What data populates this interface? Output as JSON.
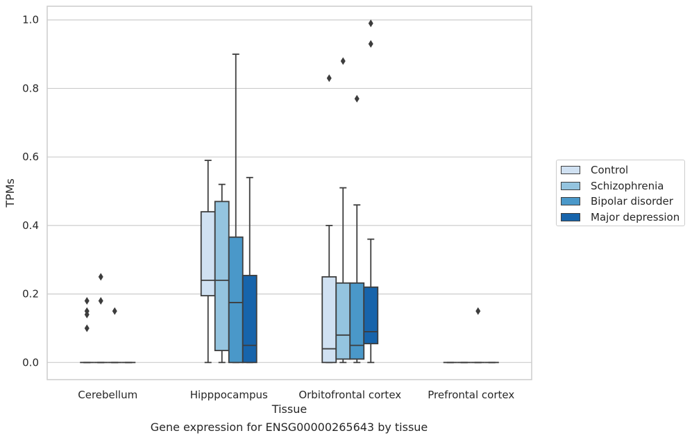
{
  "chart_data": {
    "type": "boxplot",
    "xlabel": "Tissue",
    "ylabel": "TPMs",
    "caption": "Gene expression for ENSG00000265643 by tissue",
    "ylim": [
      -0.05,
      1.04
    ],
    "yticks": [
      0.0,
      0.2,
      0.4,
      0.6,
      0.8,
      1.0
    ],
    "ytick_labels": [
      "0.0",
      "0.2",
      "0.4",
      "0.6",
      "0.8",
      "1.0"
    ],
    "categories": [
      "Cerebellum",
      "Hipppocampus",
      "Orbitofrontal cortex",
      "Prefrontal cortex"
    ],
    "grid": true,
    "legend_position": "right",
    "series": [
      {
        "name": "Control",
        "color": "#d0e1f2",
        "boxes": [
          {
            "category": "Cerebellum",
            "q1": 0,
            "median": 0,
            "q3": 0,
            "whislo": 0,
            "whishi": 0,
            "fliers": [
              0.15,
              0.1,
              0.14,
              0.18
            ]
          },
          {
            "category": "Hipppocampus",
            "q1": 0.195,
            "median": 0.24,
            "q3": 0.44,
            "whislo": 0,
            "whishi": 0.59,
            "fliers": []
          },
          {
            "category": "Orbitofrontal cortex",
            "q1": 0,
            "median": 0.04,
            "q3": 0.25,
            "whislo": 0,
            "whishi": 0.4,
            "fliers": [
              0.83
            ]
          },
          {
            "category": "Prefrontal cortex",
            "q1": 0,
            "median": 0,
            "q3": 0,
            "whislo": 0,
            "whishi": 0,
            "fliers": []
          }
        ]
      },
      {
        "name": "Schizophrenia",
        "color": "#94c4df",
        "boxes": [
          {
            "category": "Cerebellum",
            "q1": 0,
            "median": 0,
            "q3": 0,
            "whislo": 0,
            "whishi": 0,
            "fliers": [
              0.18,
              0.25
            ]
          },
          {
            "category": "Hipppocampus",
            "q1": 0.035,
            "median": 0.24,
            "q3": 0.47,
            "whislo": 0,
            "whishi": 0.52,
            "fliers": []
          },
          {
            "category": "Orbitofrontal cortex",
            "q1": 0.01,
            "median": 0.08,
            "q3": 0.232,
            "whislo": 0,
            "whishi": 0.51,
            "fliers": [
              0.88
            ]
          },
          {
            "category": "Prefrontal cortex",
            "q1": 0,
            "median": 0,
            "q3": 0,
            "whislo": 0,
            "whishi": 0,
            "fliers": []
          }
        ]
      },
      {
        "name": "Bipolar disorder",
        "color": "#4a98c9",
        "boxes": [
          {
            "category": "Cerebellum",
            "q1": 0,
            "median": 0,
            "q3": 0,
            "whislo": 0,
            "whishi": 0,
            "fliers": [
              0.15
            ]
          },
          {
            "category": "Hipppocampus",
            "q1": 0,
            "median": 0.175,
            "q3": 0.366,
            "whislo": 0,
            "whishi": 0.9,
            "fliers": []
          },
          {
            "category": "Orbitofrontal cortex",
            "q1": 0.01,
            "median": 0.05,
            "q3": 0.232,
            "whislo": 0,
            "whishi": 0.46,
            "fliers": [
              0.77
            ]
          },
          {
            "category": "Prefrontal cortex",
            "q1": 0,
            "median": 0,
            "q3": 0,
            "whislo": 0,
            "whishi": 0,
            "fliers": [
              0.15
            ]
          }
        ]
      },
      {
        "name": "Major depression",
        "color": "#1764ab",
        "boxes": [
          {
            "category": "Cerebellum",
            "q1": 0,
            "median": 0,
            "q3": 0,
            "whislo": 0,
            "whishi": 0,
            "fliers": []
          },
          {
            "category": "Hipppocampus",
            "q1": 0,
            "median": 0.05,
            "q3": 0.254,
            "whislo": 0,
            "whishi": 0.54,
            "fliers": []
          },
          {
            "category": "Orbitofrontal cortex",
            "q1": 0.055,
            "median": 0.09,
            "q3": 0.22,
            "whislo": 0,
            "whishi": 0.36,
            "fliers": [
              0.93,
              0.99
            ]
          },
          {
            "category": "Prefrontal cortex",
            "q1": 0,
            "median": 0,
            "q3": 0,
            "whislo": 0,
            "whishi": 0,
            "fliers": []
          }
        ]
      }
    ]
  }
}
